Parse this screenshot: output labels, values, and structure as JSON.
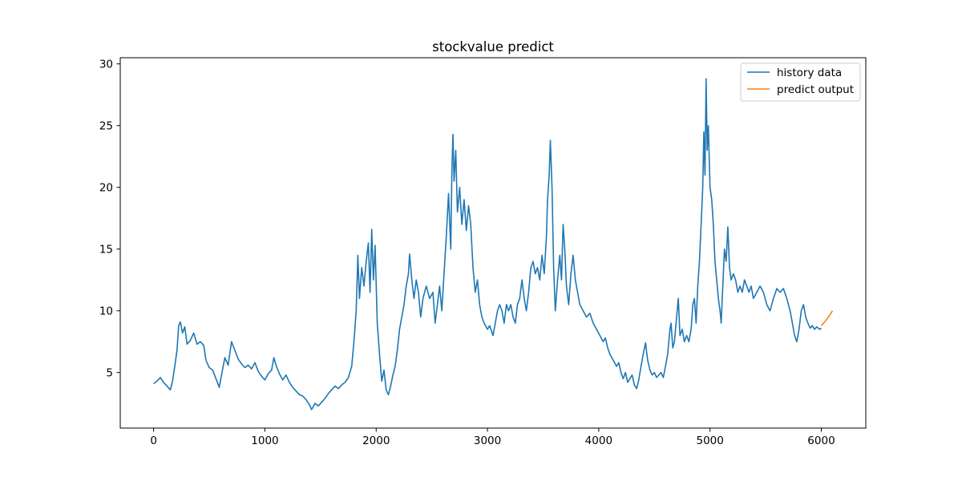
{
  "chart_data": {
    "type": "line",
    "title": "stockvalue predict",
    "xlabel": "",
    "ylabel": "",
    "xlim": [
      -300,
      6400
    ],
    "ylim": [
      0.5,
      30.5
    ],
    "xticks": [
      0,
      1000,
      2000,
      3000,
      4000,
      5000,
      6000
    ],
    "yticks": [
      5,
      10,
      15,
      20,
      25,
      30
    ],
    "grid": false,
    "legend_position": "top-right",
    "series": [
      {
        "name": "history data",
        "color": "#1f77b4",
        "points": [
          [
            0,
            4.1
          ],
          [
            30,
            4.3
          ],
          [
            60,
            4.6
          ],
          [
            90,
            4.2
          ],
          [
            120,
            3.9
          ],
          [
            150,
            3.6
          ],
          [
            170,
            4.3
          ],
          [
            190,
            5.5
          ],
          [
            210,
            6.8
          ],
          [
            225,
            8.8
          ],
          [
            240,
            9.1
          ],
          [
            260,
            8.2
          ],
          [
            280,
            8.7
          ],
          [
            300,
            7.3
          ],
          [
            330,
            7.6
          ],
          [
            360,
            8.2
          ],
          [
            390,
            7.3
          ],
          [
            420,
            7.5
          ],
          [
            450,
            7.2
          ],
          [
            470,
            6.0
          ],
          [
            500,
            5.4
          ],
          [
            530,
            5.2
          ],
          [
            560,
            4.5
          ],
          [
            590,
            3.8
          ],
          [
            610,
            4.8
          ],
          [
            640,
            6.2
          ],
          [
            670,
            5.6
          ],
          [
            700,
            7.5
          ],
          [
            730,
            6.8
          ],
          [
            760,
            6.1
          ],
          [
            790,
            5.7
          ],
          [
            820,
            5.4
          ],
          [
            850,
            5.6
          ],
          [
            880,
            5.3
          ],
          [
            910,
            5.8
          ],
          [
            940,
            5.1
          ],
          [
            970,
            4.7
          ],
          [
            1000,
            4.4
          ],
          [
            1030,
            4.9
          ],
          [
            1060,
            5.2
          ],
          [
            1080,
            6.2
          ],
          [
            1100,
            5.6
          ],
          [
            1130,
            4.9
          ],
          [
            1160,
            4.4
          ],
          [
            1190,
            4.8
          ],
          [
            1220,
            4.2
          ],
          [
            1250,
            3.8
          ],
          [
            1280,
            3.5
          ],
          [
            1310,
            3.2
          ],
          [
            1340,
            3.1
          ],
          [
            1370,
            2.8
          ],
          [
            1400,
            2.4
          ],
          [
            1420,
            2.0
          ],
          [
            1450,
            2.5
          ],
          [
            1480,
            2.3
          ],
          [
            1510,
            2.6
          ],
          [
            1540,
            2.9
          ],
          [
            1570,
            3.3
          ],
          [
            1600,
            3.6
          ],
          [
            1630,
            3.9
          ],
          [
            1660,
            3.7
          ],
          [
            1690,
            4.0
          ],
          [
            1720,
            4.2
          ],
          [
            1750,
            4.6
          ],
          [
            1780,
            5.5
          ],
          [
            1800,
            7.5
          ],
          [
            1820,
            10.0
          ],
          [
            1835,
            14.5
          ],
          [
            1850,
            11.0
          ],
          [
            1870,
            13.5
          ],
          [
            1890,
            12.0
          ],
          [
            1910,
            14.0
          ],
          [
            1930,
            15.5
          ],
          [
            1945,
            11.5
          ],
          [
            1960,
            16.6
          ],
          [
            1975,
            12.5
          ],
          [
            1990,
            15.3
          ],
          [
            2010,
            9.0
          ],
          [
            2030,
            6.5
          ],
          [
            2050,
            4.3
          ],
          [
            2070,
            5.2
          ],
          [
            2090,
            3.6
          ],
          [
            2110,
            3.2
          ],
          [
            2130,
            3.9
          ],
          [
            2150,
            4.8
          ],
          [
            2170,
            5.5
          ],
          [
            2190,
            6.8
          ],
          [
            2210,
            8.5
          ],
          [
            2230,
            9.5
          ],
          [
            2250,
            10.5
          ],
          [
            2270,
            12.0
          ],
          [
            2290,
            13.0
          ],
          [
            2300,
            14.6
          ],
          [
            2320,
            12.5
          ],
          [
            2340,
            11.0
          ],
          [
            2360,
            12.5
          ],
          [
            2380,
            11.5
          ],
          [
            2400,
            9.5
          ],
          [
            2420,
            11.0
          ],
          [
            2450,
            12.0
          ],
          [
            2480,
            11.0
          ],
          [
            2510,
            11.5
          ],
          [
            2530,
            9.0
          ],
          [
            2550,
            10.5
          ],
          [
            2570,
            12.0
          ],
          [
            2590,
            10.0
          ],
          [
            2610,
            13.0
          ],
          [
            2630,
            16.0
          ],
          [
            2650,
            19.5
          ],
          [
            2670,
            15.0
          ],
          [
            2680,
            21.0
          ],
          [
            2690,
            24.3
          ],
          [
            2700,
            20.5
          ],
          [
            2715,
            23.0
          ],
          [
            2730,
            18.0
          ],
          [
            2750,
            20.0
          ],
          [
            2770,
            17.0
          ],
          [
            2790,
            19.0
          ],
          [
            2810,
            16.5
          ],
          [
            2830,
            18.5
          ],
          [
            2850,
            17.0
          ],
          [
            2870,
            13.5
          ],
          [
            2890,
            11.5
          ],
          [
            2910,
            12.5
          ],
          [
            2930,
            10.5
          ],
          [
            2950,
            9.5
          ],
          [
            2970,
            9.0
          ],
          [
            3000,
            8.5
          ],
          [
            3020,
            8.8
          ],
          [
            3050,
            8.0
          ],
          [
            3070,
            9.0
          ],
          [
            3090,
            10.0
          ],
          [
            3110,
            10.5
          ],
          [
            3130,
            10.0
          ],
          [
            3150,
            9.0
          ],
          [
            3170,
            10.5
          ],
          [
            3190,
            10.0
          ],
          [
            3210,
            10.5
          ],
          [
            3230,
            9.5
          ],
          [
            3250,
            9.0
          ],
          [
            3270,
            10.5
          ],
          [
            3290,
            11.0
          ],
          [
            3310,
            12.5
          ],
          [
            3330,
            11.0
          ],
          [
            3350,
            10.0
          ],
          [
            3370,
            11.5
          ],
          [
            3390,
            13.5
          ],
          [
            3410,
            14.0
          ],
          [
            3430,
            13.0
          ],
          [
            3450,
            13.5
          ],
          [
            3470,
            12.5
          ],
          [
            3490,
            14.5
          ],
          [
            3510,
            13.0
          ],
          [
            3530,
            16.0
          ],
          [
            3540,
            19.0
          ],
          [
            3555,
            21.0
          ],
          [
            3565,
            23.8
          ],
          [
            3580,
            20.0
          ],
          [
            3595,
            13.5
          ],
          [
            3610,
            10.0
          ],
          [
            3630,
            12.5
          ],
          [
            3650,
            14.5
          ],
          [
            3665,
            12.5
          ],
          [
            3680,
            17.0
          ],
          [
            3695,
            15.0
          ],
          [
            3710,
            12.0
          ],
          [
            3730,
            10.5
          ],
          [
            3750,
            13.0
          ],
          [
            3770,
            14.5
          ],
          [
            3790,
            12.5
          ],
          [
            3810,
            11.5
          ],
          [
            3830,
            10.5
          ],
          [
            3860,
            10.0
          ],
          [
            3890,
            9.5
          ],
          [
            3920,
            9.8
          ],
          [
            3950,
            9.0
          ],
          [
            3980,
            8.5
          ],
          [
            4010,
            8.0
          ],
          [
            4040,
            7.5
          ],
          [
            4060,
            7.8
          ],
          [
            4080,
            7.0
          ],
          [
            4100,
            6.5
          ],
          [
            4130,
            6.0
          ],
          [
            4160,
            5.5
          ],
          [
            4180,
            5.8
          ],
          [
            4200,
            5.0
          ],
          [
            4220,
            4.5
          ],
          [
            4240,
            5.0
          ],
          [
            4260,
            4.2
          ],
          [
            4280,
            4.5
          ],
          [
            4300,
            4.8
          ],
          [
            4320,
            4.0
          ],
          [
            4340,
            3.7
          ],
          [
            4360,
            4.4
          ],
          [
            4380,
            5.5
          ],
          [
            4400,
            6.5
          ],
          [
            4420,
            7.4
          ],
          [
            4440,
            6.0
          ],
          [
            4460,
            5.2
          ],
          [
            4480,
            4.8
          ],
          [
            4500,
            5.0
          ],
          [
            4520,
            4.6
          ],
          [
            4540,
            4.8
          ],
          [
            4560,
            5.0
          ],
          [
            4580,
            4.6
          ],
          [
            4600,
            5.5
          ],
          [
            4620,
            6.5
          ],
          [
            4640,
            8.5
          ],
          [
            4650,
            9.0
          ],
          [
            4665,
            7.0
          ],
          [
            4680,
            7.5
          ],
          [
            4700,
            9.5
          ],
          [
            4715,
            11.0
          ],
          [
            4730,
            8.0
          ],
          [
            4750,
            8.5
          ],
          [
            4770,
            7.5
          ],
          [
            4790,
            8.0
          ],
          [
            4810,
            7.5
          ],
          [
            4830,
            8.5
          ],
          [
            4845,
            10.5
          ],
          [
            4860,
            11.0
          ],
          [
            4875,
            9.0
          ],
          [
            4890,
            12.0
          ],
          [
            4905,
            14.0
          ],
          [
            4920,
            17.0
          ],
          [
            4935,
            20.0
          ],
          [
            4945,
            24.5
          ],
          [
            4955,
            21.0
          ],
          [
            4965,
            28.8
          ],
          [
            4975,
            23.0
          ],
          [
            4985,
            25.0
          ],
          [
            5000,
            20.0
          ],
          [
            5015,
            19.0
          ],
          [
            5030,
            17.0
          ],
          [
            5045,
            14.0
          ],
          [
            5060,
            12.5
          ],
          [
            5075,
            11.0
          ],
          [
            5090,
            10.0
          ],
          [
            5100,
            9.0
          ],
          [
            5115,
            12.0
          ],
          [
            5130,
            15.0
          ],
          [
            5145,
            14.0
          ],
          [
            5160,
            16.8
          ],
          [
            5175,
            13.5
          ],
          [
            5190,
            12.5
          ],
          [
            5210,
            13.0
          ],
          [
            5230,
            12.5
          ],
          [
            5250,
            11.5
          ],
          [
            5270,
            12.0
          ],
          [
            5290,
            11.5
          ],
          [
            5310,
            12.5
          ],
          [
            5330,
            12.0
          ],
          [
            5350,
            11.5
          ],
          [
            5370,
            12.0
          ],
          [
            5390,
            11.0
          ],
          [
            5420,
            11.5
          ],
          [
            5450,
            12.0
          ],
          [
            5480,
            11.5
          ],
          [
            5510,
            10.5
          ],
          [
            5540,
            10.0
          ],
          [
            5570,
            11.0
          ],
          [
            5600,
            11.8
          ],
          [
            5630,
            11.5
          ],
          [
            5660,
            11.8
          ],
          [
            5690,
            11.0
          ],
          [
            5720,
            10.0
          ],
          [
            5740,
            9.0
          ],
          [
            5760,
            8.0
          ],
          [
            5780,
            7.5
          ],
          [
            5800,
            8.5
          ],
          [
            5820,
            10.0
          ],
          [
            5840,
            10.5
          ],
          [
            5860,
            9.5
          ],
          [
            5880,
            9.0
          ],
          [
            5900,
            8.6
          ],
          [
            5920,
            8.8
          ],
          [
            5940,
            8.5
          ],
          [
            5960,
            8.7
          ],
          [
            5985,
            8.5
          ],
          [
            6000,
            8.6
          ]
        ]
      },
      {
        "name": "predict output",
        "color": "#ff7f0e",
        "points": [
          [
            6000,
            8.8
          ],
          [
            6040,
            9.2
          ],
          [
            6080,
            9.7
          ],
          [
            6100,
            10.0
          ]
        ]
      }
    ]
  }
}
